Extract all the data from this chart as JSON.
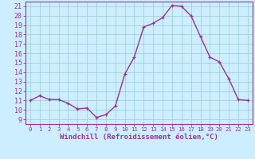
{
  "x": [
    0,
    1,
    2,
    3,
    4,
    5,
    6,
    7,
    8,
    9,
    10,
    11,
    12,
    13,
    14,
    15,
    16,
    17,
    18,
    19,
    20,
    21,
    22,
    23
  ],
  "y": [
    11,
    11.5,
    11.1,
    11.1,
    10.7,
    10.1,
    10.2,
    9.2,
    9.5,
    10.4,
    13.8,
    15.6,
    18.8,
    19.2,
    19.8,
    21.1,
    21.0,
    20.0,
    17.8,
    15.6,
    15.1,
    13.3,
    11.1,
    11.0
  ],
  "line_color": "#993399",
  "marker_color": "#993399",
  "bg_color": "#cceeff",
  "grid_color": "#99cccc",
  "xlabel": "Windchill (Refroidissement éolien,°C)",
  "xlim": [
    -0.5,
    23.5
  ],
  "ylim": [
    8.5,
    21.5
  ],
  "yticks": [
    9,
    10,
    11,
    12,
    13,
    14,
    15,
    16,
    17,
    18,
    19,
    20,
    21
  ],
  "xticks": [
    0,
    1,
    2,
    3,
    4,
    5,
    6,
    7,
    8,
    9,
    10,
    11,
    12,
    13,
    14,
    15,
    16,
    17,
    18,
    19,
    20,
    21,
    22,
    23
  ],
  "label_color": "#993399",
  "tick_color": "#993399",
  "axis_color": "#993399",
  "xlabel_fontsize": 6.5,
  "ytick_fontsize": 6.0,
  "xtick_fontsize": 5.2
}
